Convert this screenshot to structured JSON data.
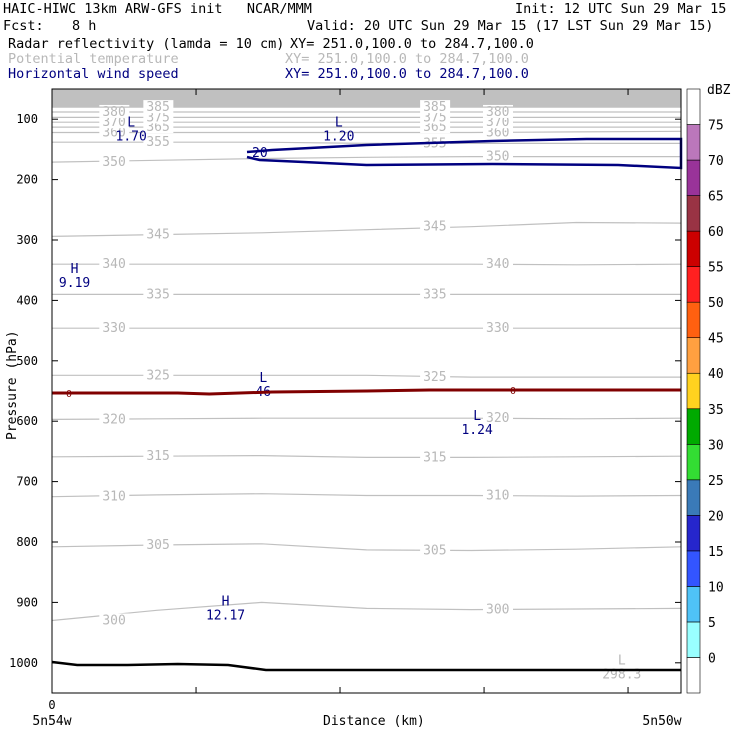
{
  "header": {
    "title": "HAIC-HIWC 13km ARW-GFS init   NCAR/MMM",
    "init": "Init: 12 UTC Sun 29 Mar 15",
    "fcst_label": "Fcst:",
    "fcst_value": "8 h",
    "valid": "Valid: 20 UTC Sun 29 Mar 15 (17 LST Sun 29 Mar 15)"
  },
  "fields": [
    {
      "name": "Radar reflectivity (lamda = 10 cm)",
      "xy": "XY= 251.0,100.0 to 284.7,100.0",
      "color": "#000000"
    },
    {
      "name": "Potential temperature",
      "xy": "XY= 251.0,100.0 to 284.7,100.0",
      "color": "#b8b8b8"
    },
    {
      "name": "Horizontal wind speed",
      "xy": "XY= 251.0,100.0 to 284.7,100.0",
      "color": "#000080"
    }
  ],
  "chart_data": {
    "type": "line",
    "ylabel": "Pressure (hPa)",
    "xlabel": "Distance (km)",
    "x_ticks": [
      "0"
    ],
    "x_endpoints": {
      "left": "5n54w",
      "right": "5n50w"
    },
    "y_ticks": [
      "100",
      "200",
      "300",
      "400",
      "500",
      "600",
      "700",
      "800",
      "900",
      "1000"
    ],
    "ylim": [
      1050,
      50
    ],
    "colorbar": {
      "unit": "dBZ",
      "levels": [
        "0",
        "5",
        "10",
        "15",
        "20",
        "25",
        "30",
        "35",
        "40",
        "45",
        "50",
        "55",
        "60",
        "65",
        "70",
        "75"
      ],
      "colors": [
        "#ffffff",
        "#99ffff",
        "#4fc3f7",
        "#3355ff",
        "#2626cc",
        "#3a7ab8",
        "#33dd33",
        "#00aa00",
        "#ffd21f",
        "#ffa040",
        "#ff6010",
        "#ff2020",
        "#cc0000",
        "#993344",
        "#993399",
        "#bb77bb"
      ]
    },
    "theta_contours": [
      {
        "label": "300",
        "p": [
          930,
          913,
          900,
          910,
          912,
          911,
          910
        ]
      },
      {
        "label": "305",
        "p": [
          808,
          805,
          803,
          813,
          814,
          812,
          808
        ]
      },
      {
        "label": "310",
        "p": [
          725,
          722,
          720,
          723,
          723,
          724,
          723
        ]
      },
      {
        "label": "315",
        "p": [
          659,
          658,
          657,
          660,
          660,
          659,
          658
        ]
      },
      {
        "label": "320",
        "p": [
          597,
          596,
          595,
          595,
          595,
          596,
          595
        ]
      },
      {
        "label": "325",
        "p": [
          524,
          524,
          524,
          524,
          527,
          527,
          527
        ]
      },
      {
        "label": "330",
        "p": [
          446,
          446,
          446,
          446,
          446,
          446,
          446
        ]
      },
      {
        "label": "335",
        "p": [
          390,
          390,
          390,
          390,
          390,
          390,
          390
        ]
      },
      {
        "label": "340",
        "p": [
          340,
          340,
          340,
          340,
          340,
          341,
          340
        ]
      },
      {
        "label": "345",
        "p": [
          294,
          291,
          288,
          283,
          278,
          271,
          272
        ]
      },
      {
        "label": "350",
        "p": [
          171,
          168,
          165,
          163,
          162,
          162,
          162
        ]
      },
      {
        "label": "355",
        "p": [
          138,
          138,
          138,
          140,
          140,
          140,
          140
        ]
      },
      {
        "label": "360",
        "p": [
          122,
          122,
          122,
          122,
          122,
          121,
          120
        ]
      },
      {
        "label": "365",
        "p": [
          113,
          113,
          113,
          113,
          113,
          113,
          113
        ]
      },
      {
        "label": "370",
        "p": [
          105,
          105,
          105,
          105,
          105,
          105,
          105
        ]
      },
      {
        "label": "375",
        "p": [
          97,
          97,
          97,
          97,
          97,
          97,
          97
        ]
      },
      {
        "label": "380",
        "p": [
          88,
          88,
          88,
          88,
          88,
          88,
          88
        ]
      },
      {
        "label": "385",
        "p": [
          80,
          80,
          80,
          80,
          80,
          80,
          80
        ]
      }
    ],
    "wind_contour_label": "20",
    "reflectivity_contour_label": "0",
    "annotations": [
      {
        "kind": "L",
        "value": "1.70",
        "x": 0.11,
        "p": 112,
        "color": "#000080"
      },
      {
        "kind": "L",
        "value": "1.20",
        "x": 0.44,
        "p": 112,
        "color": "#000080"
      },
      {
        "kind": "H",
        "value": "9.19",
        "x": 0.02,
        "p": 355,
        "color": "#000080"
      },
      {
        "kind": "L",
        "value": "46",
        "x": 0.32,
        "p": 535,
        "color": "#000080"
      },
      {
        "kind": "L",
        "value": "1.24",
        "x": 0.66,
        "p": 598,
        "color": "#000080"
      },
      {
        "kind": "H",
        "value": "12.17",
        "x": 0.26,
        "p": 905,
        "color": "#000080"
      },
      {
        "kind": "L",
        "value": "298.3",
        "x": 0.89,
        "p": 1003,
        "color": "#b8b8b8"
      }
    ]
  }
}
